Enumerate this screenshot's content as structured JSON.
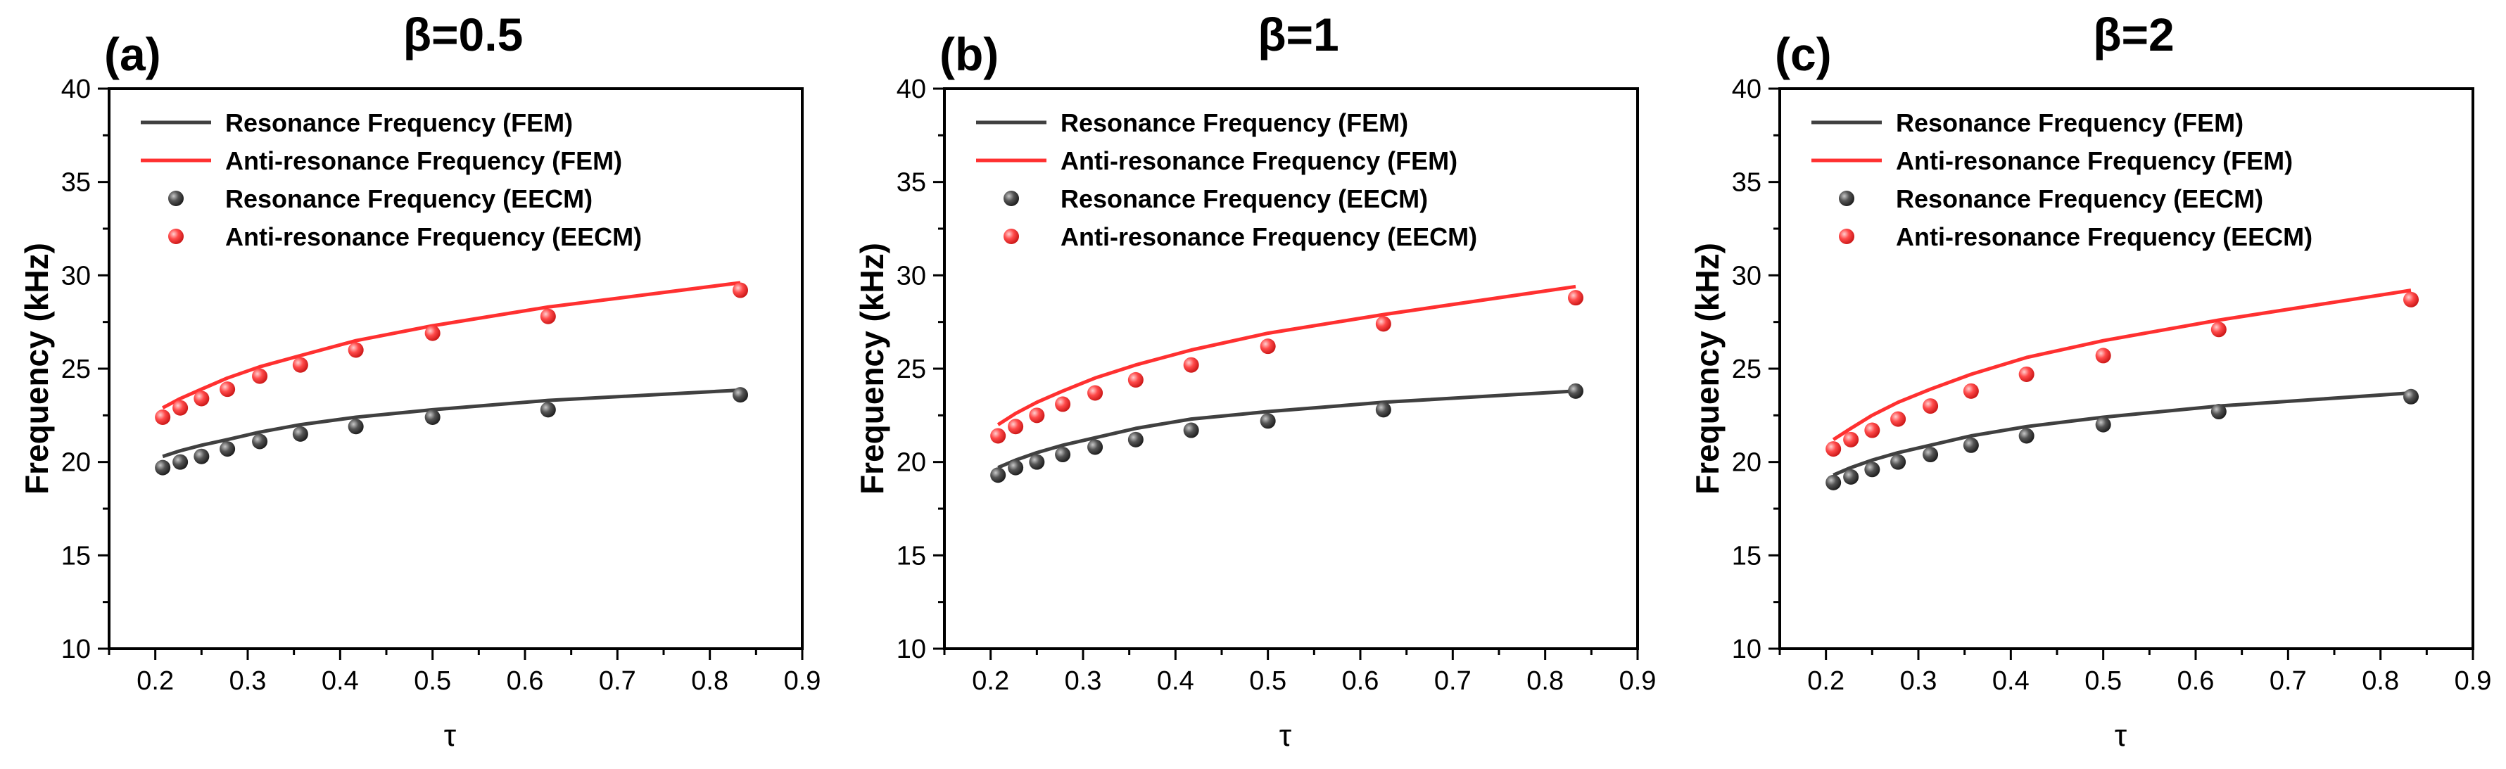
{
  "colors": {
    "resonance": "#404040",
    "anti_resonance": "#ff3030",
    "axis": "#000000"
  },
  "chart_data": [
    {
      "type": "line",
      "panel_label": "(a)",
      "title": "β=0.5",
      "xlabel": "τ",
      "ylabel": "Frequency (kHz)",
      "xlim": [
        0.15,
        0.9
      ],
      "ylim": [
        10,
        40
      ],
      "xticks": [
        "0.2",
        "0.3",
        "0.4",
        "0.5",
        "0.6",
        "0.7",
        "0.8",
        "0.9"
      ],
      "yticks": [
        "10",
        "15",
        "20",
        "25",
        "30",
        "35",
        "40"
      ],
      "legend": [
        "Resonance Frequency (FEM)",
        "Anti-resonance Frequency (FEM)",
        "Resonance Frequency (EECM)",
        "Anti-resonance Frequency (EECM)"
      ],
      "series": [
        {
          "name": "Resonance Frequency (FEM)",
          "kind": "line",
          "color": "resonance",
          "x": [
            0.208,
            0.227,
            0.25,
            0.278,
            0.313,
            0.357,
            0.417,
            0.5,
            0.625,
            0.833
          ],
          "y": [
            20.3,
            20.6,
            20.9,
            21.2,
            21.6,
            22.0,
            22.4,
            22.8,
            23.3,
            23.85
          ]
        },
        {
          "name": "Anti-resonance Frequency (FEM)",
          "kind": "line",
          "color": "anti_resonance",
          "x": [
            0.208,
            0.227,
            0.25,
            0.278,
            0.313,
            0.357,
            0.417,
            0.5,
            0.625,
            0.833
          ],
          "y": [
            22.9,
            23.4,
            23.9,
            24.5,
            25.1,
            25.7,
            26.5,
            27.3,
            28.3,
            29.6
          ]
        },
        {
          "name": "Resonance Frequency (EECM)",
          "kind": "scatter",
          "color": "resonance",
          "x": [
            0.208,
            0.227,
            0.25,
            0.278,
            0.313,
            0.357,
            0.417,
            0.5,
            0.625,
            0.833
          ],
          "y": [
            19.7,
            20.0,
            20.3,
            20.7,
            21.1,
            21.5,
            21.9,
            22.4,
            22.8,
            23.6
          ]
        },
        {
          "name": "Anti-resonance Frequency (EECM)",
          "kind": "scatter",
          "color": "anti_resonance",
          "x": [
            0.208,
            0.227,
            0.25,
            0.278,
            0.313,
            0.357,
            0.417,
            0.5,
            0.625,
            0.833
          ],
          "y": [
            22.4,
            22.9,
            23.4,
            23.9,
            24.6,
            25.2,
            26.0,
            26.9,
            27.8,
            29.2
          ]
        }
      ]
    },
    {
      "type": "line",
      "panel_label": "(b)",
      "title": "β=1",
      "xlabel": "τ",
      "ylabel": "Frequency (kHz)",
      "xlim": [
        0.15,
        0.9
      ],
      "ylim": [
        10,
        40
      ],
      "xticks": [
        "0.2",
        "0.3",
        "0.4",
        "0.5",
        "0.6",
        "0.7",
        "0.8",
        "0.9"
      ],
      "yticks": [
        "10",
        "15",
        "20",
        "25",
        "30",
        "35",
        "40"
      ],
      "legend": [
        "Resonance Frequency (FEM)",
        "Anti-resonance Frequency (FEM)",
        "Resonance Frequency (EECM)",
        "Anti-resonance Frequency (EECM)"
      ],
      "series": [
        {
          "name": "Resonance Frequency (FEM)",
          "kind": "line",
          "color": "resonance",
          "x": [
            0.208,
            0.227,
            0.25,
            0.278,
            0.313,
            0.357,
            0.417,
            0.5,
            0.625,
            0.833
          ],
          "y": [
            19.7,
            20.1,
            20.5,
            20.9,
            21.3,
            21.8,
            22.3,
            22.7,
            23.2,
            23.8
          ]
        },
        {
          "name": "Anti-resonance Frequency (FEM)",
          "kind": "line",
          "color": "anti_resonance",
          "x": [
            0.208,
            0.227,
            0.25,
            0.278,
            0.313,
            0.357,
            0.417,
            0.5,
            0.625,
            0.833
          ],
          "y": [
            22.0,
            22.6,
            23.2,
            23.8,
            24.5,
            25.2,
            26.0,
            26.9,
            27.9,
            29.4
          ]
        },
        {
          "name": "Resonance Frequency (EECM)",
          "kind": "scatter",
          "color": "resonance",
          "x": [
            0.208,
            0.227,
            0.25,
            0.278,
            0.313,
            0.357,
            0.417,
            0.5,
            0.625,
            0.833
          ],
          "y": [
            19.3,
            19.7,
            20.0,
            20.4,
            20.8,
            21.2,
            21.7,
            22.2,
            22.8,
            23.8
          ]
        },
        {
          "name": "Anti-resonance Frequency (EECM)",
          "kind": "scatter",
          "color": "anti_resonance",
          "x": [
            0.208,
            0.227,
            0.25,
            0.278,
            0.313,
            0.357,
            0.417,
            0.5,
            0.625,
            0.833
          ],
          "y": [
            21.4,
            21.9,
            22.5,
            23.1,
            23.7,
            24.4,
            25.2,
            26.2,
            27.4,
            28.8
          ]
        }
      ]
    },
    {
      "type": "line",
      "panel_label": "(c)",
      "title": "β=2",
      "xlabel": "τ",
      "ylabel": "Frequency (kHz)",
      "xlim": [
        0.15,
        0.9
      ],
      "ylim": [
        10,
        40
      ],
      "xticks": [
        "0.2",
        "0.3",
        "0.4",
        "0.5",
        "0.6",
        "0.7",
        "0.8",
        "0.9"
      ],
      "yticks": [
        "10",
        "15",
        "20",
        "25",
        "30",
        "35",
        "40"
      ],
      "legend": [
        "Resonance Frequency (FEM)",
        "Anti-resonance Frequency (FEM)",
        "Resonance Frequency (EECM)",
        "Anti-resonance Frequency (EECM)"
      ],
      "series": [
        {
          "name": "Resonance Frequency (FEM)",
          "kind": "line",
          "color": "resonance",
          "x": [
            0.208,
            0.227,
            0.25,
            0.278,
            0.313,
            0.357,
            0.417,
            0.5,
            0.625,
            0.833
          ],
          "y": [
            19.3,
            19.7,
            20.1,
            20.5,
            20.9,
            21.4,
            21.9,
            22.4,
            23.0,
            23.7
          ]
        },
        {
          "name": "Anti-resonance Frequency (FEM)",
          "kind": "line",
          "color": "anti_resonance",
          "x": [
            0.208,
            0.227,
            0.25,
            0.278,
            0.313,
            0.357,
            0.417,
            0.5,
            0.625,
            0.833
          ],
          "y": [
            21.2,
            21.8,
            22.5,
            23.2,
            23.9,
            24.7,
            25.6,
            26.5,
            27.6,
            29.2
          ]
        },
        {
          "name": "Resonance Frequency (EECM)",
          "kind": "scatter",
          "color": "resonance",
          "x": [
            0.208,
            0.227,
            0.25,
            0.278,
            0.313,
            0.357,
            0.417,
            0.5,
            0.625,
            0.833
          ],
          "y": [
            18.9,
            19.2,
            19.6,
            20.0,
            20.4,
            20.9,
            21.4,
            22.0,
            22.7,
            23.5
          ]
        },
        {
          "name": "Anti-resonance Frequency (EECM)",
          "kind": "scatter",
          "color": "anti_resonance",
          "x": [
            0.208,
            0.227,
            0.25,
            0.278,
            0.313,
            0.357,
            0.417,
            0.5,
            0.625,
            0.833
          ],
          "y": [
            20.7,
            21.2,
            21.7,
            22.3,
            23.0,
            23.8,
            24.7,
            25.7,
            27.1,
            28.7
          ]
        }
      ]
    }
  ]
}
